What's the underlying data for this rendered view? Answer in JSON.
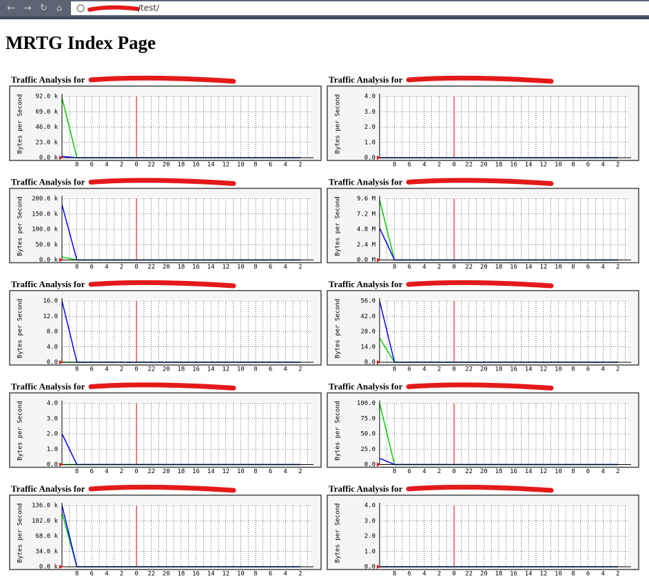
{
  "browser": {
    "url": "/test/"
  },
  "page_title": "MRTG Index Page",
  "chart_data": [
    {
      "type": "line",
      "title": "Traffic Analysis for",
      "y_label": "Bytes per Second",
      "categories": [
        null,
        "8",
        "6",
        "4",
        "2",
        "0",
        "22",
        "20",
        "18",
        "16",
        "14",
        "12",
        "10",
        "8",
        "6",
        "4",
        "2"
      ],
      "ylim": [
        0,
        92000
      ],
      "yticks": [
        {
          "value": 0,
          "label": "0.0 k"
        },
        {
          "value": 23000,
          "label": "23.0 k"
        },
        {
          "value": 46000,
          "label": "46.0 k"
        },
        {
          "value": 69000,
          "label": "69.0 k"
        },
        {
          "value": 92000,
          "label": "92.0 k"
        }
      ],
      "series": [
        {
          "color": "#00cc00",
          "values": [
            90000,
            0,
            0,
            0,
            0,
            0,
            0,
            0,
            0,
            0,
            0,
            0,
            0,
            0,
            0,
            0,
            0
          ]
        },
        {
          "color": "#0000ff",
          "values": [
            2000,
            0,
            0,
            0,
            0,
            0,
            0,
            0,
            0,
            0,
            0,
            0,
            0,
            0,
            0,
            0,
            0
          ]
        }
      ]
    },
    {
      "type": "line",
      "title": "Traffic Analysis for",
      "y_label": "Bytes per Second",
      "categories": [
        null,
        "8",
        "6",
        "4",
        "2",
        "0",
        "22",
        "20",
        "18",
        "16",
        "14",
        "12",
        "10",
        "8",
        "6",
        "4",
        "2"
      ],
      "ylim": [
        0,
        4
      ],
      "yticks": [
        {
          "value": 0,
          "label": "0.0"
        },
        {
          "value": 1,
          "label": "1.0"
        },
        {
          "value": 2,
          "label": "2.0"
        },
        {
          "value": 3,
          "label": "3.0"
        },
        {
          "value": 4,
          "label": "4.0"
        }
      ],
      "series": [
        {
          "color": "#00cc00",
          "values": [
            0,
            0,
            0,
            0,
            0,
            0,
            0,
            0,
            0,
            0,
            0,
            0,
            0,
            0,
            0,
            0,
            0
          ]
        },
        {
          "color": "#0000ff",
          "values": [
            0,
            0,
            0,
            0,
            0,
            0,
            0,
            0,
            0,
            0,
            0,
            0,
            0,
            0,
            0,
            0,
            0
          ]
        }
      ]
    },
    {
      "type": "line",
      "title": "Traffic Analysis for",
      "y_label": "Bytes per Second",
      "categories": [
        null,
        "8",
        "6",
        "4",
        "2",
        "0",
        "22",
        "20",
        "18",
        "16",
        "14",
        "12",
        "10",
        "8",
        "6",
        "4",
        "2"
      ],
      "ylim": [
        0,
        200000
      ],
      "yticks": [
        {
          "value": 0,
          "label": "0.0 k"
        },
        {
          "value": 50000,
          "label": "50.0 k"
        },
        {
          "value": 100000,
          "label": "100.0 k"
        },
        {
          "value": 150000,
          "label": "150.0 k"
        },
        {
          "value": 200000,
          "label": "200.0 k"
        }
      ],
      "series": [
        {
          "color": "#00cc00",
          "values": [
            10000,
            0,
            0,
            0,
            0,
            0,
            0,
            0,
            0,
            0,
            0,
            0,
            0,
            0,
            0,
            0,
            0
          ]
        },
        {
          "color": "#0000ff",
          "values": [
            180000,
            0,
            0,
            0,
            0,
            0,
            0,
            0,
            0,
            0,
            0,
            0,
            0,
            0,
            0,
            0,
            0
          ]
        }
      ]
    },
    {
      "type": "line",
      "title": "Traffic Analysis for",
      "y_label": "Bytes per Second",
      "categories": [
        null,
        "8",
        "6",
        "4",
        "2",
        "0",
        "22",
        "20",
        "18",
        "16",
        "14",
        "12",
        "10",
        "8",
        "6",
        "4",
        "2"
      ],
      "ylim": [
        0,
        9600000
      ],
      "yticks": [
        {
          "value": 0,
          "label": "0.0 M"
        },
        {
          "value": 2400000,
          "label": "2.4 M"
        },
        {
          "value": 4800000,
          "label": "4.8 M"
        },
        {
          "value": 7200000,
          "label": "7.2 M"
        },
        {
          "value": 9600000,
          "label": "9.6 M"
        }
      ],
      "series": [
        {
          "color": "#00cc00",
          "values": [
            9400000,
            0,
            0,
            0,
            0,
            0,
            0,
            0,
            0,
            0,
            0,
            0,
            0,
            0,
            0,
            0,
            0
          ]
        },
        {
          "color": "#0000ff",
          "values": [
            5000000,
            0,
            0,
            0,
            0,
            0,
            0,
            0,
            0,
            0,
            0,
            0,
            0,
            0,
            0,
            0,
            0
          ]
        }
      ]
    },
    {
      "type": "line",
      "title": "Traffic Analysis for",
      "y_label": "Bytes per Second",
      "categories": [
        null,
        "8",
        "6",
        "4",
        "2",
        "0",
        "22",
        "20",
        "18",
        "16",
        "14",
        "12",
        "10",
        "8",
        "6",
        "4",
        "2"
      ],
      "ylim": [
        0,
        16
      ],
      "yticks": [
        {
          "value": 0,
          "label": "0.0"
        },
        {
          "value": 4,
          "label": "4.0"
        },
        {
          "value": 8,
          "label": "8.0"
        },
        {
          "value": 12,
          "label": "12.0"
        },
        {
          "value": 16,
          "label": "16.0"
        }
      ],
      "series": [
        {
          "color": "#00cc00",
          "values": [
            0,
            0,
            0,
            0,
            0,
            0,
            0,
            0,
            0,
            0,
            0,
            0,
            0,
            0,
            0,
            0,
            0
          ]
        },
        {
          "color": "#0000ff",
          "values": [
            16,
            0,
            0,
            0,
            0,
            0,
            0,
            0,
            0,
            0,
            0,
            0,
            0,
            0,
            0,
            0,
            0
          ]
        }
      ]
    },
    {
      "type": "line",
      "title": "Traffic Analysis for",
      "y_label": "Bytes per Second",
      "categories": [
        null,
        "8",
        "6",
        "4",
        "2",
        "0",
        "22",
        "20",
        "18",
        "16",
        "14",
        "12",
        "10",
        "8",
        "6",
        "4",
        "2"
      ],
      "ylim": [
        0,
        56
      ],
      "yticks": [
        {
          "value": 0,
          "label": "0.0"
        },
        {
          "value": 14,
          "label": "14.0"
        },
        {
          "value": 28,
          "label": "28.0"
        },
        {
          "value": 42,
          "label": "42.0"
        },
        {
          "value": 56,
          "label": "56.0"
        }
      ],
      "series": [
        {
          "color": "#00cc00",
          "values": [
            22,
            0,
            0,
            0,
            0,
            0,
            0,
            0,
            0,
            0,
            0,
            0,
            0,
            0,
            0,
            0,
            0
          ]
        },
        {
          "color": "#0000ff",
          "values": [
            56,
            0,
            0,
            0,
            0,
            0,
            0,
            0,
            0,
            0,
            0,
            0,
            0,
            0,
            0,
            0,
            0
          ]
        }
      ]
    },
    {
      "type": "line",
      "title": "Traffic Analysis for",
      "y_label": "Bytes per Second",
      "categories": [
        null,
        "8",
        "6",
        "4",
        "2",
        "0",
        "22",
        "20",
        "18",
        "16",
        "14",
        "12",
        "10",
        "8",
        "6",
        "4",
        "2"
      ],
      "ylim": [
        0,
        4
      ],
      "yticks": [
        {
          "value": 0,
          "label": "0.0"
        },
        {
          "value": 1,
          "label": "1.0"
        },
        {
          "value": 2,
          "label": "2.0"
        },
        {
          "value": 3,
          "label": "3.0"
        },
        {
          "value": 4,
          "label": "4.0"
        }
      ],
      "series": [
        {
          "color": "#00cc00",
          "values": [
            0,
            0,
            0,
            0,
            0,
            0,
            0,
            0,
            0,
            0,
            0,
            0,
            0,
            0,
            0,
            0,
            0
          ]
        },
        {
          "color": "#0000ff",
          "values": [
            2,
            0,
            0,
            0,
            0,
            0,
            0,
            0,
            0,
            0,
            0,
            0,
            0,
            0,
            0,
            0,
            0
          ]
        }
      ]
    },
    {
      "type": "line",
      "title": "Traffic Analysis for",
      "y_label": "Bytes per Second",
      "categories": [
        null,
        "8",
        "6",
        "4",
        "2",
        "0",
        "22",
        "20",
        "18",
        "16",
        "14",
        "12",
        "10",
        "8",
        "6",
        "4",
        "2"
      ],
      "ylim": [
        0,
        100
      ],
      "yticks": [
        {
          "value": 0,
          "label": "0.0"
        },
        {
          "value": 25,
          "label": "25.0"
        },
        {
          "value": 50,
          "label": "50.0"
        },
        {
          "value": 75,
          "label": "75.0"
        },
        {
          "value": 100,
          "label": "100.0"
        }
      ],
      "series": [
        {
          "color": "#00cc00",
          "values": [
            100,
            0,
            0,
            0,
            0,
            0,
            0,
            0,
            0,
            0,
            0,
            0,
            0,
            0,
            0,
            0,
            0
          ]
        },
        {
          "color": "#0000ff",
          "values": [
            10,
            0,
            0,
            0,
            0,
            0,
            0,
            0,
            0,
            0,
            0,
            0,
            0,
            0,
            0,
            0,
            0
          ]
        }
      ]
    },
    {
      "type": "line",
      "title": "Traffic Analysis for",
      "y_label": "Bytes per Second",
      "categories": [
        null,
        "8",
        "6",
        "4",
        "2",
        "0",
        "22",
        "20",
        "18",
        "16",
        "14",
        "12",
        "10",
        "8",
        "6",
        "4",
        "2"
      ],
      "ylim": [
        0,
        136000
      ],
      "yticks": [
        {
          "value": 0,
          "label": "0.0 k"
        },
        {
          "value": 34000,
          "label": "34.0 k"
        },
        {
          "value": 68000,
          "label": "68.0 k"
        },
        {
          "value": 102000,
          "label": "102.0 k"
        },
        {
          "value": 136000,
          "label": "136.0 k"
        }
      ],
      "series": [
        {
          "color": "#00cc00",
          "values": [
            120000,
            0,
            0,
            0,
            0,
            0,
            0,
            0,
            0,
            0,
            0,
            0,
            0,
            0,
            0,
            0,
            0
          ]
        },
        {
          "color": "#0000ff",
          "values": [
            136000,
            0,
            0,
            0,
            0,
            0,
            0,
            0,
            0,
            0,
            0,
            0,
            0,
            0,
            0,
            0,
            0
          ]
        }
      ]
    },
    {
      "type": "line",
      "title": "Traffic Analysis for",
      "y_label": "Bytes per Second",
      "categories": [
        null,
        "8",
        "6",
        "4",
        "2",
        "0",
        "22",
        "20",
        "18",
        "16",
        "14",
        "12",
        "10",
        "8",
        "6",
        "4",
        "2"
      ],
      "ylim": [
        0,
        4
      ],
      "yticks": [
        {
          "value": 0,
          "label": "0.0"
        },
        {
          "value": 1,
          "label": "1.0"
        },
        {
          "value": 2,
          "label": "2.0"
        },
        {
          "value": 3,
          "label": "3.0"
        },
        {
          "value": 4,
          "label": "4.0"
        }
      ],
      "series": [
        {
          "color": "#00cc00",
          "values": [
            0,
            0,
            0,
            0,
            0,
            0,
            0,
            0,
            0,
            0,
            0,
            0,
            0,
            0,
            0,
            0,
            0
          ]
        },
        {
          "color": "#0000ff",
          "values": [
            0,
            0,
            0,
            0,
            0,
            0,
            0,
            0,
            0,
            0,
            0,
            0,
            0,
            0,
            0,
            0,
            0
          ]
        }
      ]
    }
  ]
}
